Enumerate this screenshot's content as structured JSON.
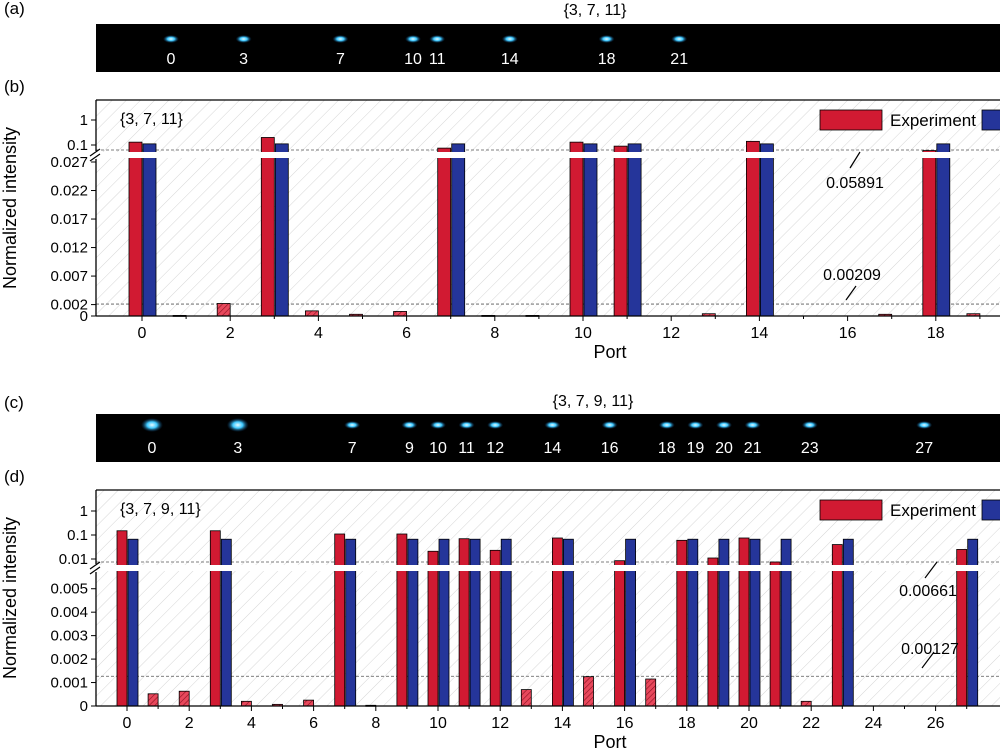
{
  "panel_labels": {
    "a": "(a)",
    "b": "(b)",
    "c": "(c)",
    "d": "(d)"
  },
  "colors": {
    "experiment": "#d11a32",
    "simulation": "#25359a",
    "spot": "#39c8ff",
    "strip": "#000000"
  },
  "strip_a": {
    "title": "{3, 7, 11}",
    "ports": [
      "0",
      "3",
      "7",
      "10",
      "11",
      "14",
      "18",
      "21"
    ]
  },
  "strip_c": {
    "title": "{3, 7, 9, 11}",
    "ports": [
      "0",
      "3",
      "7",
      "9",
      "10",
      "11",
      "12",
      "14",
      "16",
      "18",
      "19",
      "20",
      "21",
      "23",
      "27"
    ]
  },
  "chart_data": [
    {
      "type": "bar",
      "panel": "b",
      "annotation": "{3, 7, 11}",
      "ylabel": "Normalized intensity",
      "xlabel": "Port",
      "x_ticks": [
        "0",
        "2",
        "4",
        "6",
        "8",
        "10",
        "12",
        "14",
        "16",
        "18"
      ],
      "y_ticks_lower": [
        "0",
        "0.002",
        "0.007",
        "0.012",
        "0.017",
        "0.022",
        "0.027"
      ],
      "y_ticks_upper": [
        "0.1",
        "1"
      ],
      "axis_break": true,
      "reference_lines": [
        {
          "label": "0.05891",
          "value": 0.05891
        },
        {
          "label": "0.00209",
          "value": 0.00209
        }
      ],
      "legend": [
        "Experiment"
      ],
      "legend_position": "top-right",
      "ports": [
        0,
        1,
        2,
        3,
        4,
        5,
        6,
        7,
        8,
        9,
        10,
        11,
        12,
        13,
        14,
        15,
        16,
        17,
        18,
        19
      ],
      "series": [
        {
          "name": "Experiment",
          "values": [
            0.13,
            0.0001,
            0.0022,
            0.2,
            0.0009,
            0.0003,
            0.0008,
            0.075,
            0.0001,
            0.0001,
            0.13,
            0.09,
            0.0,
            0.0004,
            0.14,
            0.0,
            0.0,
            0.0003,
            0.06,
            0.0004
          ]
        },
        {
          "name": "",
          "values": [
            0.111,
            0,
            0,
            0.111,
            0,
            0,
            0,
            0.111,
            0,
            0,
            0.111,
            0.111,
            0,
            0,
            0.111,
            0,
            0,
            0,
            0.111,
            0
          ]
        }
      ]
    },
    {
      "type": "bar",
      "panel": "d",
      "annotation": "{3, 7, 9, 11}",
      "ylabel": "Normalized intensity",
      "xlabel": "Port",
      "x_ticks": [
        "0",
        "2",
        "4",
        "6",
        "8",
        "10",
        "12",
        "14",
        "16",
        "18",
        "20",
        "22",
        "24",
        "26"
      ],
      "y_ticks_lower": [
        "0",
        "0.001",
        "0.002",
        "0.003",
        "0.004",
        "0.005"
      ],
      "y_ticks_upper": [
        "0.01",
        "0.1",
        "1"
      ],
      "axis_break": true,
      "reference_lines": [
        {
          "label": "0.00661",
          "value": 0.00661
        },
        {
          "label": "0.00127",
          "value": 0.00127
        }
      ],
      "legend": [
        "Experiment"
      ],
      "legend_position": "top-right",
      "ports": [
        0,
        1,
        2,
        3,
        4,
        5,
        6,
        7,
        8,
        9,
        10,
        11,
        12,
        13,
        14,
        15,
        16,
        17,
        18,
        19,
        20,
        21,
        22,
        23,
        24,
        25,
        26,
        27
      ],
      "series": [
        {
          "name": "Experiment",
          "values": [
            0.15,
            0.00052,
            0.00063,
            0.15,
            0.0002,
            7e-05,
            0.00025,
            0.11,
            3e-05,
            0.11,
            0.021,
            0.07,
            0.023,
            0.0007,
            0.075,
            0.00125,
            0.0085,
            0.00115,
            0.06,
            0.011,
            0.075,
            0.0075,
            0.0002,
            0.04,
            0.0,
            0.0,
            0.0,
            0.025
          ]
        },
        {
          "name": "",
          "values": [
            0.0667,
            0,
            0,
            0.0667,
            0,
            0,
            0,
            0.0667,
            0,
            0.0667,
            0.0667,
            0.0667,
            0.0667,
            0,
            0.0667,
            0,
            0.0667,
            0,
            0.0667,
            0.0667,
            0.0667,
            0.0667,
            0,
            0.0667,
            0,
            0,
            0,
            0.0667
          ]
        }
      ]
    }
  ]
}
